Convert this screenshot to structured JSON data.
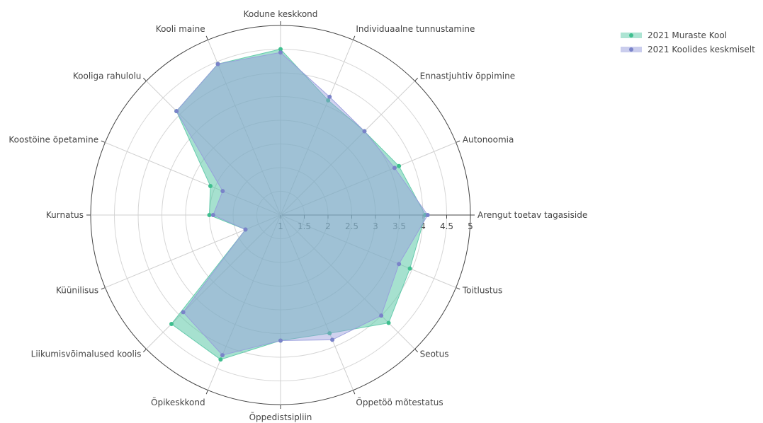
{
  "chart_data": {
    "type": "radar",
    "r_range": [
      1,
      5
    ],
    "r_ticks": [
      "1",
      "1.5",
      "2",
      "2.5",
      "3",
      "3.5",
      "4",
      "4.5",
      "5"
    ],
    "categories": [
      "Arengut toetav tagasiside",
      "Autonoomia",
      "Ennastjuhtiv õppimine",
      "Individuaalne tunnustamine",
      "Kodune keskkond",
      "Kooli maine",
      "Kooliga rahulolu",
      "Koostöine õpetamine",
      "Kurnatus",
      "Küünilisus",
      "Liikumisvõimalused koolis",
      "Õpikeskkond",
      "Õppedistsipliin",
      "Õppetöö mõtestatus",
      "Seotus",
      "Toitlustus"
    ],
    "series": [
      {
        "name": "2021 Muraste Kool",
        "color": "#5cc9a7",
        "values": [
          4.05,
          3.7,
          3.5,
          3.62,
          4.5,
          4.45,
          4.1,
          2.6,
          2.5,
          1.8,
          4.25,
          4.3,
          3.65,
          3.7,
          4.22,
          3.95
        ]
      },
      {
        "name": "2021 Koolides keskmiselt",
        "color": "#8a8fd6",
        "values": [
          4.1,
          3.6,
          3.5,
          3.7,
          4.43,
          4.45,
          4.1,
          2.32,
          2.42,
          1.8,
          3.9,
          4.2,
          3.65,
          3.85,
          4.0,
          3.7
        ]
      }
    ],
    "grid": true,
    "legend_position": "top-right"
  }
}
